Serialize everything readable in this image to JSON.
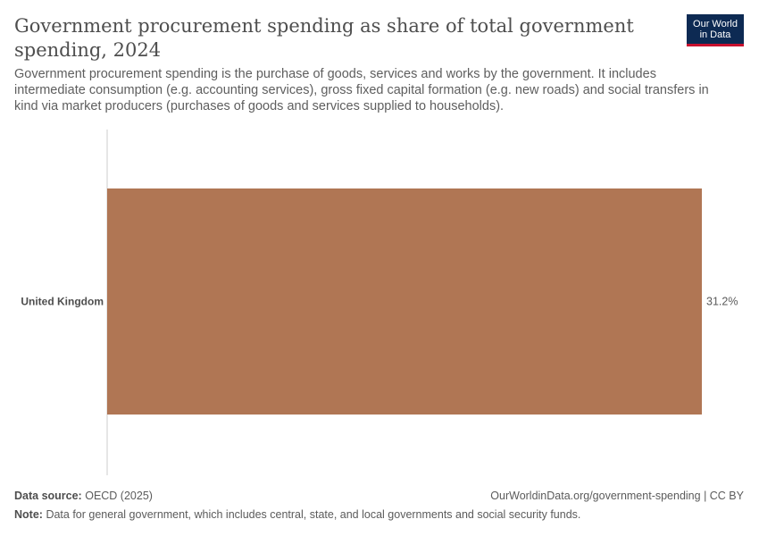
{
  "header": {
    "title": "Government procurement spending as share of total government spending, 2024",
    "subtitle": "Government procurement spending is the purchase of goods, services and works by the government. It includes intermediate consumption (e.g. accounting services), gross fixed capital formation (e.g. new roads) and social transfers in kind via market producers (purchases of goods and services supplied to households).",
    "logo_line1": "Our World",
    "logo_line2": "in Data"
  },
  "footer": {
    "source_label": "Data source:",
    "source_value": "OECD (2025)",
    "url": "OurWorldinData.org/government-spending | CC BY",
    "note_label": "Note:",
    "note_value": "Data for general government, which includes central, state, and local governments and social security funds."
  },
  "colors": {
    "bar": "#b07654",
    "axis": "#cccccc",
    "logo_bg": "#0d2a53",
    "logo_accent": "#c8102e"
  },
  "chart_data": {
    "type": "bar",
    "orientation": "horizontal",
    "categories": [
      "United Kingdom"
    ],
    "values": [
      31.2
    ],
    "value_labels": [
      "31.2%"
    ],
    "unit": "%",
    "xlim": [
      0,
      31.2
    ],
    "grid": false
  }
}
